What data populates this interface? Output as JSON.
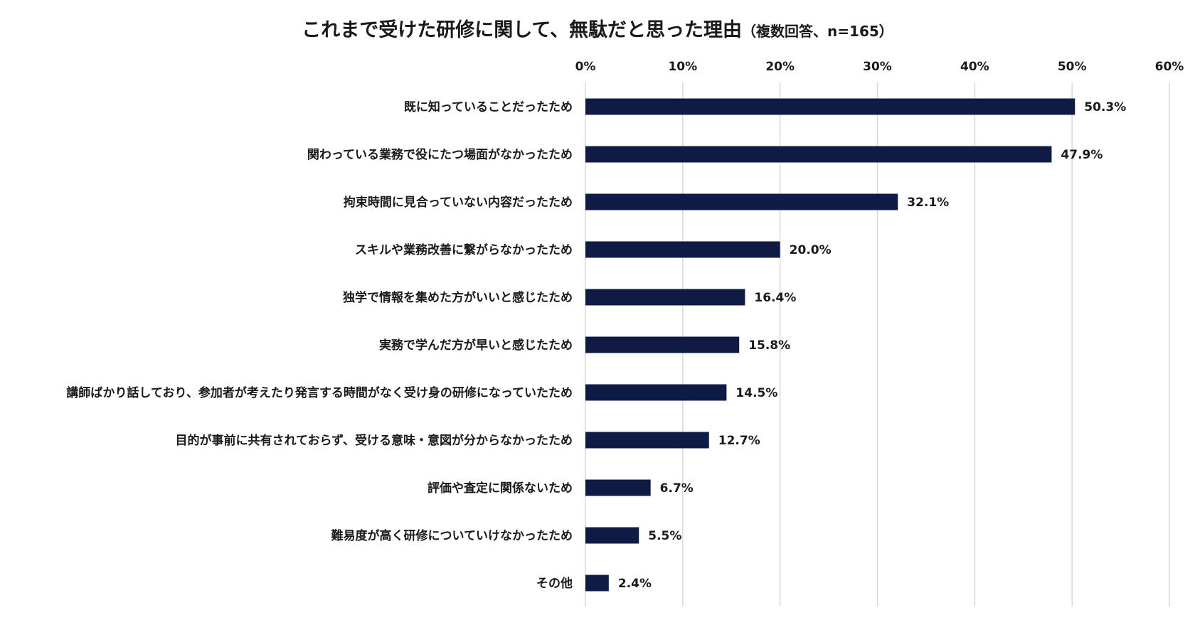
{
  "chart_data": {
    "type": "bar",
    "orientation": "horizontal",
    "title": "これまで受けた研修に関して、無駄だと思った理由",
    "subtitle": "（複数回答、n=165）",
    "categories": [
      "既に知っていることだったため",
      "関わっている業務で役にたつ場面がなかったため",
      "拘束時間に見合っていない内容だったため",
      "スキルや業務改善に繋がらなかったため",
      "独学で情報を集めた方がいいと感じたため",
      "実務で学んだ方が早いと感じたため",
      "講師ばかり話しており、参加者が考えたり発言する時間がなく受け身の研修になっていたため",
      "目的が事前に共有されておらず、受ける意味・意図が分からなかったため",
      "評価や査定に関係ないため",
      "難易度が高く研修についていけなかったため",
      "その他"
    ],
    "values": [
      50.3,
      47.9,
      32.1,
      20.0,
      16.4,
      15.8,
      14.5,
      12.7,
      6.7,
      5.5,
      2.4
    ],
    "value_labels": [
      "50.3%",
      "47.9%",
      "32.1%",
      "20.0%",
      "16.4%",
      "15.8%",
      "14.5%",
      "12.7%",
      "6.7%",
      "5.5%",
      "2.4%"
    ],
    "xlim": [
      0,
      60
    ],
    "x_ticks": [
      0,
      10,
      20,
      30,
      40,
      50,
      60
    ],
    "x_tick_labels": [
      "0%",
      "10%",
      "20%",
      "30%",
      "40%",
      "50%",
      "60%"
    ],
    "x_axis_position": "top",
    "grid": true,
    "bar_color": "#0f1a45"
  }
}
